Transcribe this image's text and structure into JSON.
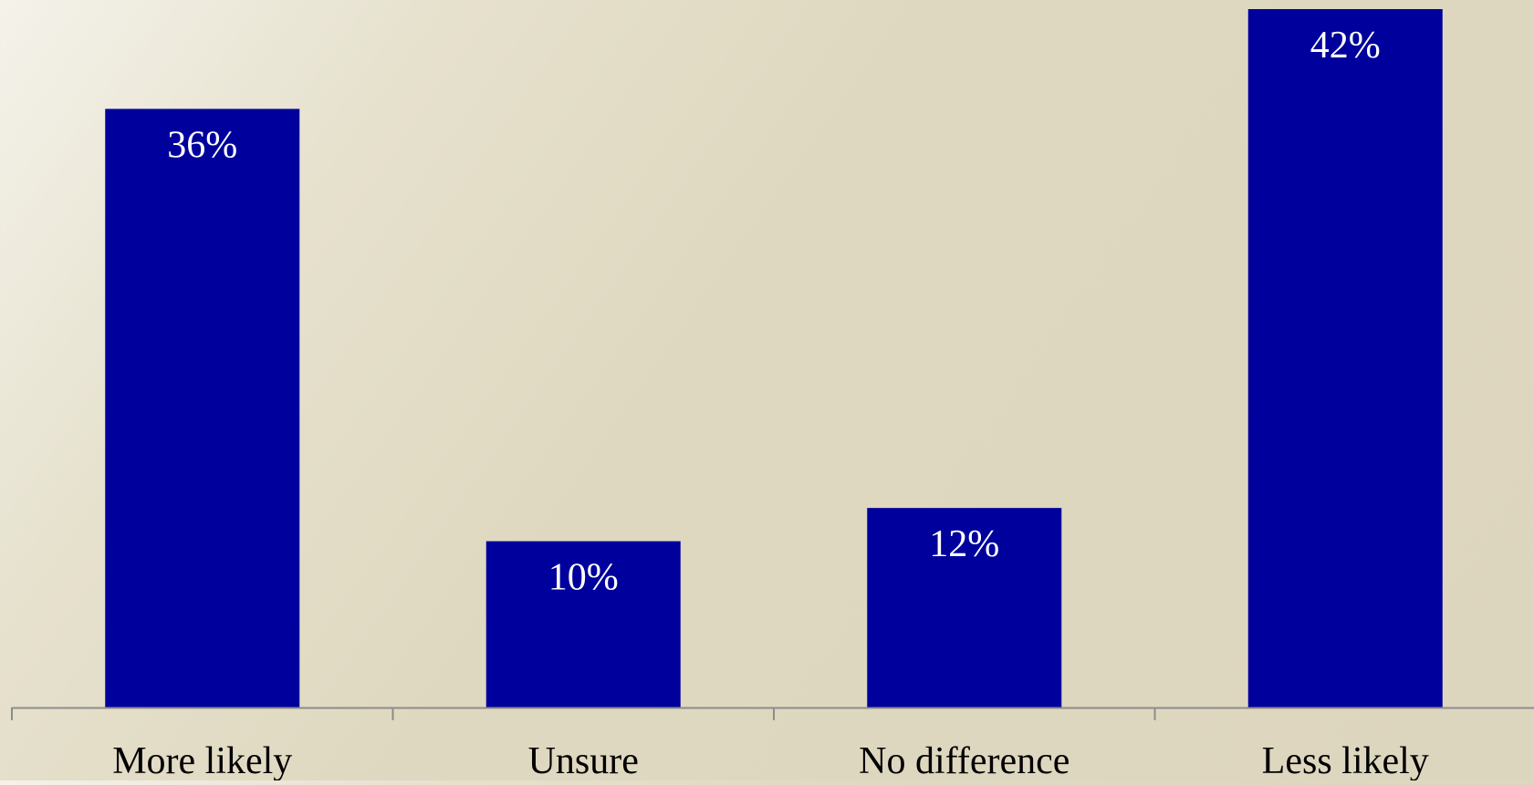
{
  "chart_data": {
    "type": "bar",
    "title": "",
    "xlabel": "",
    "ylabel": "",
    "categories": [
      "More likely",
      "Unsure",
      "No difference",
      "Less likely"
    ],
    "values": [
      36,
      10,
      12,
      42
    ],
    "value_labels": [
      "36%",
      "10%",
      "12%",
      "42%"
    ],
    "ylim": [
      0,
      42
    ],
    "grid": false,
    "legend": "none",
    "colors": {
      "bar": "#00009c",
      "value_label": "#ffffff",
      "axis": "#8c8c8c",
      "category_label": "#000000"
    }
  }
}
